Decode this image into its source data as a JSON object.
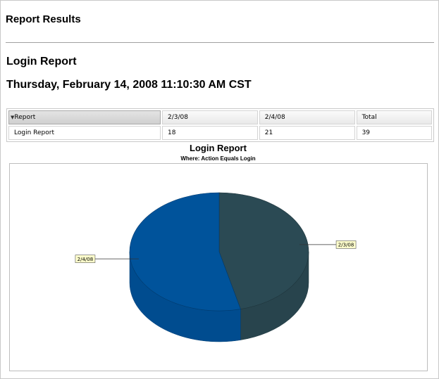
{
  "page": {
    "title": "Report Results"
  },
  "report": {
    "title": "Login Report",
    "date": "Thursday, February 14, 2008 11:10:30 AM CST"
  },
  "table": {
    "headers": [
      "Report",
      "2/3/08",
      "2/4/08",
      "Total"
    ],
    "sort_icon": "triangle-down-icon",
    "rows": [
      [
        "Login Report",
        "18",
        "21",
        "39"
      ]
    ]
  },
  "chart_data": {
    "type": "pie",
    "title": "Login Report",
    "subtitle": "Where: Action Equals Login",
    "categories": [
      "2/3/08",
      "2/4/08"
    ],
    "values": [
      18,
      21
    ],
    "colors": {
      "2/3/08": "#2b4a54",
      "2/4/08": "#00539b"
    },
    "label_background": "#ffffcc"
  }
}
